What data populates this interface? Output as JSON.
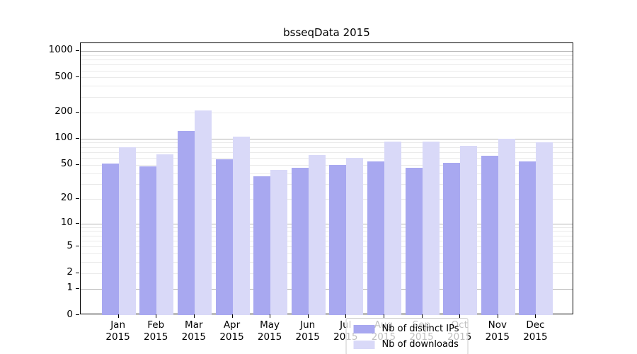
{
  "chart_data": {
    "type": "bar",
    "title": "bsseqData 2015",
    "year": "2015",
    "categories": [
      "Jan",
      "Feb",
      "Mar",
      "Apr",
      "May",
      "Jun",
      "Jul",
      "Aug",
      "Sep",
      "Oct",
      "Nov",
      "Dec"
    ],
    "series": [
      {
        "name": "Nb of distinct IPs",
        "color": "#a8a8f0",
        "values": [
          52,
          48,
          123,
          58,
          37,
          46,
          50,
          55,
          46,
          53,
          64,
          55
        ]
      },
      {
        "name": "Nb of downloads",
        "color": "#d9d9f8",
        "values": [
          80,
          66,
          210,
          105,
          44,
          65,
          60,
          92,
          92,
          83,
          100,
          90
        ]
      }
    ],
    "yscale": "log1p",
    "ylim": [
      0,
      1225
    ],
    "y_ticks": [
      0,
      1,
      2,
      5,
      10,
      20,
      50,
      100,
      200,
      500,
      1000
    ],
    "y_minor_gridlines": [
      2,
      3,
      4,
      5,
      6,
      7,
      8,
      9,
      20,
      30,
      40,
      50,
      60,
      70,
      80,
      90,
      200,
      300,
      400,
      500,
      600,
      700,
      800,
      900
    ],
    "y_major_gridlines": [
      1,
      10,
      100,
      1000
    ],
    "grid": "horizontal",
    "legend_position": "lower center"
  }
}
